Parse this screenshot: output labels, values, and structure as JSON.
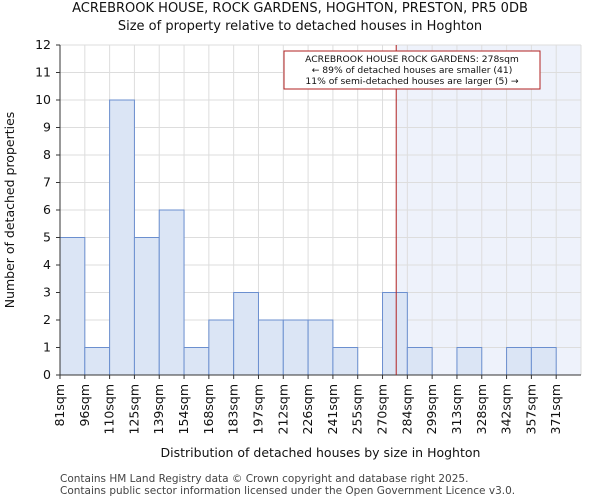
{
  "header": {
    "line1": "ACREBROOK HOUSE, ROCK GARDENS, HOGHTON, PRESTON, PR5 0DB",
    "line2": "Size of property relative to detached houses in Hoghton"
  },
  "footer": {
    "line1": "Contains HM Land Registry data © Crown copyright and database right 2025.",
    "line2": "Contains public sector information licensed under the Open Government Licence v3.0."
  },
  "colors": {
    "bar_fill": "#dbe5f5",
    "bar_stroke": "#6b8fcf",
    "highlight_bg": "#eef2fb",
    "marker_line": "#b22222",
    "grid": "#dddddd"
  },
  "chart_data": {
    "type": "bar",
    "title": "Size of property relative to detached houses in Hoghton",
    "xlabel": "Distribution of detached houses by size in Hoghton",
    "ylabel": "Number of detached properties",
    "categories": [
      "81sqm",
      "96sqm",
      "110sqm",
      "125sqm",
      "139sqm",
      "154sqm",
      "168sqm",
      "183sqm",
      "197sqm",
      "212sqm",
      "226sqm",
      "241sqm",
      "255sqm",
      "270sqm",
      "284sqm",
      "299sqm",
      "313sqm",
      "328sqm",
      "342sqm",
      "357sqm",
      "371sqm"
    ],
    "values": [
      5,
      1,
      10,
      5,
      6,
      1,
      2,
      3,
      2,
      2,
      2,
      1,
      0,
      3,
      1,
      0,
      1,
      0,
      1,
      1,
      0
    ],
    "ylim": [
      0,
      12
    ],
    "yticks": [
      0,
      1,
      2,
      3,
      4,
      5,
      6,
      7,
      8,
      9,
      10,
      11,
      12
    ],
    "grid": true,
    "marker": {
      "value_sqm": 278,
      "bin_start": 270,
      "bin_width": 14.5
    },
    "annotation": {
      "line1": "ACREBROOK HOUSE ROCK GARDENS: 278sqm",
      "line2": "← 89% of detached houses are smaller (41)",
      "line3": "11% of semi-detached houses are larger (5) →"
    }
  }
}
